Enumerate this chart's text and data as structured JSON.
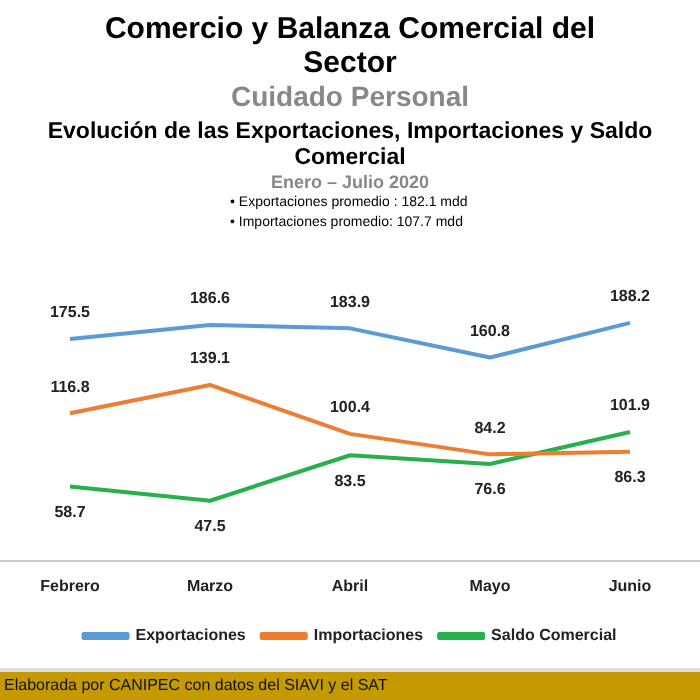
{
  "chart_data": {
    "type": "line",
    "title": "Comercio y Balanza Comercial del Sector",
    "subtitle": "Cuidado Personal",
    "annotations": [
      "Evolución de las Exportaciones, Importaciones y Saldo Comercial",
      "Enero – Julio 2020",
      "•  Exportaciones promedio :  182.1 mdd",
      "•  Importaciones promedio:  107.7 mdd",
      "Elaborada por CANIPEC con datos del SIAVI y el SAT"
    ],
    "categories": [
      "Febrero",
      "Marzo",
      "Abril",
      "Mayo",
      "Junio"
    ],
    "series": [
      {
        "name": "Exportaciones",
        "color": "#5b9bd5",
        "values": [
          175.5,
          186.6,
          183.9,
          160.8,
          188.2
        ]
      },
      {
        "name": "Importaciones",
        "color": "#ed7d31",
        "values": [
          116.8,
          139.1,
          100.4,
          84.2,
          86.3
        ]
      },
      {
        "name": "Saldo Comercial",
        "color": "#27b04b",
        "values": [
          58.7,
          47.5,
          83.5,
          76.6,
          101.9
        ]
      }
    ],
    "data_labels": true,
    "legend": "bottom",
    "grid": false,
    "marker": "none",
    "line_style": "solid"
  }
}
